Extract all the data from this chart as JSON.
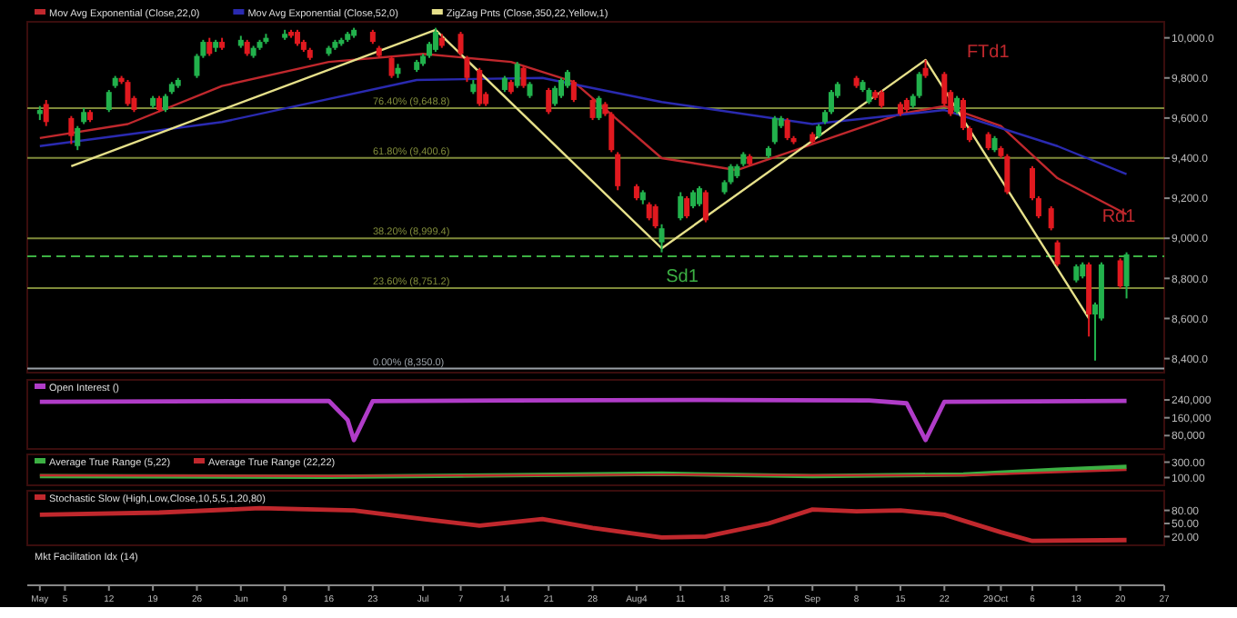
{
  "chart_data": [
    {
      "type": "candlestick",
      "legend": "top left",
      "tick_labels": "y",
      "xlim": [
        "--04-29",
        "--10-27"
      ],
      "ylim": [
        8330,
        10080
      ],
      "yticks": [
        {
          "value": 8400,
          "label": "8,400.0"
        },
        {
          "value": 8600,
          "label": "8,600.0"
        },
        {
          "value": 8800,
          "label": "8,800.0"
        },
        {
          "value": 9000,
          "label": "9,000.0"
        },
        {
          "value": 9200,
          "label": "9,200.0"
        },
        {
          "value": 9400,
          "label": "9,400.0"
        },
        {
          "value": 9600,
          "label": "9,600.0"
        },
        {
          "value": 9800,
          "label": "9,800.0"
        },
        {
          "value": 10000,
          "label": "10,000.0"
        }
      ],
      "x": [
        "--05-01",
        "--05-02",
        "--05-06",
        "--05-07",
        "--05-08",
        "--05-09",
        "--05-12",
        "--05-13",
        "--05-14",
        "--05-15",
        "--05-16",
        "--05-19",
        "--05-20",
        "--05-21",
        "--05-22",
        "--05-23",
        "--05-26",
        "--05-27",
        "--05-28",
        "--05-29",
        "--05-30",
        "--06-02",
        "--06-03",
        "--06-04",
        "--06-05",
        "--06-06",
        "--06-09",
        "--06-10",
        "--06-11",
        "--06-12",
        "--06-13",
        "--06-16",
        "--06-17",
        "--06-18",
        "--06-19",
        "--06-20",
        "--06-23",
        "--06-24",
        "--06-26",
        "--06-27",
        "--06-30",
        "--07-01",
        "--07-02",
        "--07-03",
        "--07-04",
        "--07-07",
        "--07-08",
        "--07-09",
        "--07-10",
        "--07-11",
        "--07-14",
        "--07-15",
        "--07-16",
        "--07-17",
        "--07-18",
        "--07-21",
        "--07-22",
        "--07-23",
        "--07-24",
        "--07-25",
        "--07-28",
        "--07-29",
        "--07-30",
        "--07-31",
        "--08-01",
        "--08-04",
        "--08-05",
        "--08-06",
        "--08-07",
        "--08-08",
        "--08-11",
        "--08-12",
        "--08-13",
        "--08-14",
        "--08-15",
        "--08-18",
        "--08-19",
        "--08-20",
        "--08-21",
        "--08-22",
        "--08-25",
        "--08-26",
        "--08-27",
        "--08-28",
        "--08-29",
        "--09-01",
        "--09-02",
        "--09-03",
        "--09-04",
        "--09-05",
        "--09-08",
        "--09-09",
        "--09-10",
        "--09-11",
        "--09-12",
        "--09-15",
        "--09-16",
        "--09-17",
        "--09-18",
        "--09-19",
        "--09-22",
        "--09-23",
        "--09-24",
        "--09-25",
        "--09-26",
        "--09-29",
        "--09-30",
        "--10-01",
        "--10-02",
        "--10-06",
        "--10-07",
        "--10-09",
        "--10-10",
        "--10-13",
        "--10-14",
        "--10-15",
        "--10-16",
        "--10-17",
        "--10-20",
        "--10-21"
      ],
      "ohlc": [
        [
          9620,
          9660,
          9590,
          9640
        ],
        [
          9670,
          9690,
          9560,
          9580
        ],
        [
          9600,
          9610,
          9470,
          9510
        ],
        [
          9460,
          9560,
          9440,
          9550
        ],
        [
          9580,
          9650,
          9570,
          9630
        ],
        [
          9630,
          9640,
          9580,
          9590
        ],
        [
          9640,
          9740,
          9630,
          9730
        ],
        [
          9760,
          9810,
          9750,
          9800
        ],
        [
          9800,
          9810,
          9770,
          9780
        ],
        [
          9780,
          9790,
          9660,
          9670
        ],
        [
          9700,
          9710,
          9630,
          9640
        ],
        [
          9660,
          9710,
          9650,
          9700
        ],
        [
          9700,
          9710,
          9630,
          9640
        ],
        [
          9640,
          9720,
          9630,
          9710
        ],
        [
          9730,
          9780,
          9720,
          9770
        ],
        [
          9760,
          9800,
          9750,
          9790
        ],
        [
          9810,
          9920,
          9800,
          9910
        ],
        [
          9910,
          9990,
          9900,
          9980
        ],
        [
          9980,
          10000,
          9910,
          9920
        ],
        [
          9950,
          9990,
          9930,
          9980
        ],
        [
          9980,
          10000,
          9940,
          9950
        ],
        [
          9960,
          10010,
          9950,
          9990
        ],
        [
          9980,
          9990,
          9910,
          9920
        ],
        [
          9910,
          9960,
          9900,
          9950
        ],
        [
          9950,
          9990,
          9940,
          9980
        ],
        [
          9980,
          10020,
          9970,
          10000
        ],
        [
          10000,
          10040,
          9990,
          10020
        ],
        [
          10030,
          10040,
          10000,
          10010
        ],
        [
          10030,
          10040,
          9960,
          9970
        ],
        [
          9980,
          9990,
          9930,
          9940
        ],
        [
          9940,
          9950,
          9890,
          9900
        ],
        [
          9920,
          9960,
          9910,
          9950
        ],
        [
          9950,
          9990,
          9940,
          9980
        ],
        [
          9970,
          10000,
          9960,
          9990
        ],
        [
          9990,
          10030,
          9980,
          10020
        ],
        [
          10010,
          10050,
          10000,
          10040
        ],
        [
          10030,
          10040,
          9970,
          9980
        ],
        [
          9950,
          9960,
          9900,
          9910
        ],
        [
          9900,
          9910,
          9800,
          9810
        ],
        [
          9820,
          9870,
          9800,
          9850
        ],
        [
          9840,
          9890,
          9830,
          9880
        ],
        [
          9870,
          9920,
          9860,
          9910
        ],
        [
          9910,
          9980,
          9900,
          9970
        ],
        [
          9940,
          10050,
          9930,
          10030
        ],
        [
          10000,
          10020,
          9950,
          9960
        ],
        [
          10020,
          10030,
          9910,
          9920
        ],
        [
          9900,
          9910,
          9780,
          9800
        ],
        [
          9730,
          9790,
          9720,
          9770
        ],
        [
          9840,
          9850,
          9660,
          9670
        ],
        [
          9720,
          9730,
          9660,
          9670
        ],
        [
          9740,
          9810,
          9730,
          9800
        ],
        [
          9780,
          9790,
          9720,
          9730
        ],
        [
          9760,
          9880,
          9750,
          9870
        ],
        [
          9850,
          9860,
          9750,
          9760
        ],
        [
          9710,
          9780,
          9700,
          9770
        ],
        [
          9740,
          9750,
          9620,
          9630
        ],
        [
          9670,
          9760,
          9660,
          9750
        ],
        [
          9710,
          9800,
          9700,
          9790
        ],
        [
          9760,
          9840,
          9750,
          9830
        ],
        [
          9780,
          9790,
          9680,
          9690
        ],
        [
          9690,
          9700,
          9590,
          9600
        ],
        [
          9600,
          9710,
          9590,
          9700
        ],
        [
          9670,
          9680,
          9610,
          9620
        ],
        [
          9620,
          9630,
          9430,
          9440
        ],
        [
          9420,
          9430,
          9240,
          9260
        ],
        [
          9260,
          9270,
          9190,
          9200
        ],
        [
          9190,
          9240,
          9170,
          9230
        ],
        [
          9170,
          9180,
          9090,
          9100
        ],
        [
          9160,
          9170,
          9050,
          9060
        ],
        [
          8980,
          9070,
          8930,
          9050
        ],
        [
          9100,
          9230,
          9090,
          9210
        ],
        [
          9200,
          9210,
          9100,
          9110
        ],
        [
          9160,
          9240,
          9150,
          9230
        ],
        [
          9170,
          9260,
          9160,
          9250
        ],
        [
          9230,
          9240,
          9080,
          9090
        ],
        [
          9230,
          9290,
          9220,
          9280
        ],
        [
          9280,
          9370,
          9270,
          9360
        ],
        [
          9310,
          9370,
          9300,
          9360
        ],
        [
          9370,
          9430,
          9360,
          9420
        ],
        [
          9410,
          9420,
          9360,
          9370
        ],
        [
          9410,
          9460,
          9400,
          9450
        ],
        [
          9480,
          9610,
          9470,
          9600
        ],
        [
          9560,
          9610,
          9550,
          9600
        ],
        [
          9590,
          9600,
          9490,
          9500
        ],
        [
          9500,
          9510,
          9470,
          9480
        ],
        [
          9520,
          9530,
          9470,
          9480
        ],
        [
          9510,
          9570,
          9500,
          9560
        ],
        [
          9580,
          9640,
          9570,
          9630
        ],
        [
          9630,
          9740,
          9620,
          9730
        ],
        [
          9710,
          9780,
          9700,
          9770
        ],
        [
          9800,
          9810,
          9750,
          9760
        ],
        [
          9740,
          9790,
          9730,
          9780
        ],
        [
          9680,
          9750,
          9670,
          9740
        ],
        [
          9730,
          9740,
          9690,
          9700
        ],
        [
          9730,
          9740,
          9650,
          9660
        ],
        [
          9670,
          9680,
          9610,
          9620
        ],
        [
          9690,
          9700,
          9630,
          9640
        ],
        [
          9660,
          9720,
          9650,
          9710
        ],
        [
          9710,
          9830,
          9700,
          9820
        ],
        [
          9850,
          9890,
          9800,
          9810
        ],
        [
          9820,
          9830,
          9660,
          9670
        ],
        [
          9730,
          9740,
          9610,
          9620
        ],
        [
          9630,
          9710,
          9620,
          9700
        ],
        [
          9690,
          9700,
          9540,
          9550
        ],
        [
          9550,
          9560,
          9480,
          9490
        ],
        [
          9520,
          9530,
          9440,
          9450
        ],
        [
          9440,
          9510,
          9430,
          9500
        ],
        [
          9450,
          9460,
          9400,
          9410
        ],
        [
          9410,
          9420,
          9220,
          9230
        ],
        [
          9350,
          9360,
          9190,
          9200
        ],
        [
          9200,
          9210,
          9100,
          9110
        ],
        [
          9150,
          9160,
          9040,
          9050
        ],
        [
          8980,
          8990,
          8860,
          8870
        ],
        [
          8790,
          8870,
          8780,
          8860
        ],
        [
          8810,
          8880,
          8800,
          8870
        ],
        [
          8870,
          8880,
          8510,
          8620
        ],
        [
          8620,
          8680,
          8390,
          8670
        ],
        [
          8600,
          8880,
          8590,
          8870
        ],
        [
          8890,
          8900,
          8750,
          8760
        ],
        [
          8760,
          8930,
          8700,
          8920
        ]
      ],
      "colors": [
        "#22b14c",
        "#e0191f",
        "#e0191f",
        "#22b14c",
        "#22b14c",
        "#e0191f",
        "#22b14c",
        "#22b14c",
        "#e0191f",
        "#e0191f",
        "#e0191f",
        "#22b14c",
        "#e0191f",
        "#22b14c",
        "#22b14c",
        "#22b14c",
        "#22b14c",
        "#22b14c",
        "#e0191f",
        "#22b14c",
        "#e0191f",
        "#22b14c",
        "#e0191f",
        "#22b14c",
        "#22b14c",
        "#22b14c",
        "#22b14c",
        "#e0191f",
        "#e0191f",
        "#e0191f",
        "#e0191f",
        "#22b14c",
        "#22b14c",
        "#22b14c",
        "#22b14c",
        "#22b14c",
        "#e0191f",
        "#e0191f",
        "#e0191f",
        "#22b14c",
        "#22b14c",
        "#22b14c",
        "#22b14c",
        "#22b14c",
        "#e0191f",
        "#e0191f",
        "#e0191f",
        "#22b14c",
        "#e0191f",
        "#e0191f",
        "#22b14c",
        "#e0191f",
        "#22b14c",
        "#e0191f",
        "#22b14c",
        "#e0191f",
        "#22b14c",
        "#22b14c",
        "#22b14c",
        "#e0191f",
        "#e0191f",
        "#22b14c",
        "#e0191f",
        "#e0191f",
        "#e0191f",
        "#e0191f",
        "#22b14c",
        "#e0191f",
        "#e0191f",
        "#22b14c",
        "#22b14c",
        "#e0191f",
        "#22b14c",
        "#22b14c",
        "#e0191f",
        "#22b14c",
        "#22b14c",
        "#22b14c",
        "#22b14c",
        "#e0191f",
        "#22b14c",
        "#22b14c",
        "#22b14c",
        "#e0191f",
        "#e0191f",
        "#e0191f",
        "#22b14c",
        "#22b14c",
        "#22b14c",
        "#22b14c",
        "#e0191f",
        "#22b14c",
        "#22b14c",
        "#e0191f",
        "#e0191f",
        "#e0191f",
        "#e0191f",
        "#22b14c",
        "#22b14c",
        "#e0191f",
        "#e0191f",
        "#e0191f",
        "#22b14c",
        "#e0191f",
        "#e0191f",
        "#e0191f",
        "#22b14c",
        "#e0191f",
        "#e0191f",
        "#e0191f",
        "#e0191f",
        "#e0191f",
        "#e0191f",
        "#22b14c",
        "#22b14c",
        "#e0191f",
        "#22b14c",
        "#22b14c",
        "#e0191f",
        "#22b14c"
      ],
      "series": [
        {
          "type": "line",
          "name": "Mov Avg Exponential (Close,22,0)",
          "color": "#c0282d",
          "x": [
            "--05-01",
            "--05-15",
            "--05-30",
            "--06-16",
            "--07-01",
            "--07-15",
            "--07-25",
            "--08-08",
            "--08-20",
            "--09-01",
            "--09-15",
            "--09-22",
            "--10-01",
            "--10-10",
            "--10-21"
          ],
          "values": [
            9500,
            9570,
            9760,
            9880,
            9920,
            9880,
            9780,
            9400,
            9340,
            9470,
            9620,
            9660,
            9560,
            9300,
            9120
          ]
        },
        {
          "type": "line",
          "name": "Mov Avg Exponential (Close,52,0)",
          "color": "#2a2ab0",
          "x": [
            "--05-01",
            "--05-30",
            "--06-30",
            "--07-20",
            "--08-08",
            "--09-01",
            "--09-22",
            "--10-10",
            "--10-21"
          ],
          "values": [
            9460,
            9580,
            9790,
            9800,
            9680,
            9570,
            9640,
            9460,
            9320
          ]
        },
        {
          "type": "line",
          "name": "ZigZag Pnts (Close,350,22,Yellow,1)",
          "color": "#e6e08a",
          "x": [
            "--05-06",
            "--07-03",
            "--08-08",
            "--09-19",
            "--10-15"
          ],
          "values": [
            9360,
            10040,
            8950,
            9890,
            8600
          ]
        }
      ],
      "ref_lines": [
        {
          "axis": "y",
          "value": 9648.8,
          "label": "76.40% (9,648.8)",
          "color": "#7f8a3a"
        },
        {
          "axis": "y",
          "value": 9400.6,
          "label": "61.80% (9,400.6)",
          "color": "#7f8a3a"
        },
        {
          "axis": "y",
          "value": 8999.4,
          "label": "38.20% (8,999.4)",
          "color": "#7f8a3a"
        },
        {
          "axis": "y",
          "value": 8751.2,
          "label": "23.60% (8,751.2)",
          "color": "#7f8a3a"
        },
        {
          "axis": "y",
          "value": 8350,
          "label": "0.00% (8,350.0)",
          "color": "#9aa0a6"
        },
        {
          "axis": "y",
          "value": 8910,
          "color": "#3cb043",
          "line_style": "dashed"
        }
      ],
      "annotations": [
        "Sd1",
        "FTd1",
        "Rd1"
      ]
    },
    {
      "type": "line",
      "legend": "top left",
      "tick_labels": "y",
      "xlim": [
        "--04-29",
        "--10-27"
      ],
      "ylim": [
        20000,
        330000
      ],
      "yticks": [
        {
          "value": 80000,
          "label": "80,000"
        },
        {
          "value": 160000,
          "label": "160,000"
        },
        {
          "value": 240000,
          "label": "240,000"
        }
      ],
      "series": [
        {
          "name": "Open Interest ()",
          "color": "#b03cc8",
          "x": [
            "--05-01",
            "--06-16",
            "--06-19",
            "--06-20",
            "--06-23",
            "--07-15",
            "--08-15",
            "--09-10",
            "--09-16",
            "--09-19",
            "--09-22",
            "--10-21"
          ],
          "values": [
            232000,
            236000,
            150000,
            60000,
            235000,
            238000,
            240000,
            238000,
            225000,
            60000,
            232000,
            236000
          ]
        }
      ]
    },
    {
      "type": "line",
      "legend": "top left",
      "tick_labels": "y",
      "xlim": [
        "--04-29",
        "--10-27"
      ],
      "ylim": [
        0,
        400
      ],
      "yticks": [
        {
          "value": 100,
          "label": "100.00"
        },
        {
          "value": 300,
          "label": "300.00"
        }
      ],
      "series": [
        {
          "name": "Average True Range (5,22)",
          "color": "#3cb043",
          "x": [
            "--05-01",
            "--06-16",
            "--07-15",
            "--08-08",
            "--09-01",
            "--09-25",
            "--10-10",
            "--10-21"
          ],
          "values": [
            120,
            110,
            130,
            150,
            120,
            140,
            200,
            240
          ]
        },
        {
          "name": "Average True Range (22,22)",
          "color": "#c0282d",
          "x": [
            "--05-01",
            "--06-16",
            "--07-15",
            "--08-08",
            "--09-01",
            "--09-25",
            "--10-10",
            "--10-21"
          ],
          "values": [
            130,
            120,
            130,
            140,
            130,
            130,
            170,
            200
          ]
        }
      ]
    },
    {
      "type": "line",
      "legend": "top left",
      "xlim": [
        "--04-29",
        "--10-27"
      ],
      "ylim": [
        0,
        125
      ],
      "xticks": [
        {
          "value": "--05-01",
          "label": "May"
        },
        {
          "value": "--05-05",
          "label": "5"
        },
        {
          "value": "--05-12",
          "label": "12"
        },
        {
          "value": "--05-19",
          "label": "19"
        },
        {
          "value": "--05-26",
          "label": "26"
        },
        {
          "value": "--06-02",
          "label": "Jun"
        },
        {
          "value": "--06-09",
          "label": "9"
        },
        {
          "value": "--06-16",
          "label": "16"
        },
        {
          "value": "--06-23",
          "label": "23"
        },
        {
          "value": "--07-01",
          "label": "Jul"
        },
        {
          "value": "--07-07",
          "label": "7"
        },
        {
          "value": "--07-14",
          "label": "14"
        },
        {
          "value": "--07-21",
          "label": "21"
        },
        {
          "value": "--07-28",
          "label": "28"
        },
        {
          "value": "--08-04",
          "label": "Aug4"
        },
        {
          "value": "--08-11",
          "label": "11"
        },
        {
          "value": "--08-18",
          "label": "18"
        },
        {
          "value": "--08-25",
          "label": "25"
        },
        {
          "value": "--09-01",
          "label": "Sep"
        },
        {
          "value": "--09-08",
          "label": "8"
        },
        {
          "value": "--09-15",
          "label": "15"
        },
        {
          "value": "--09-22",
          "label": "22"
        },
        {
          "value": "--09-29",
          "label": "29"
        },
        {
          "value": "--10-01",
          "label": "Oct"
        },
        {
          "value": "--10-06",
          "label": "6"
        },
        {
          "value": "--10-13",
          "label": "13"
        },
        {
          "value": "--10-20",
          "label": "20"
        },
        {
          "value": "--10-27",
          "label": "27"
        }
      ],
      "yticks": [
        {
          "value": 20,
          "label": "20.00"
        },
        {
          "value": 50,
          "label": "50.00"
        },
        {
          "value": 80,
          "label": "80.00"
        }
      ],
      "series": [
        {
          "name": "Stochastic Slow (High,Low,Close,10,5,5,1,20,80)",
          "color": "#c0282d",
          "x": [
            "--05-01",
            "--05-20",
            "--06-05",
            "--06-20",
            "--07-01",
            "--07-10",
            "--07-20",
            "--07-28",
            "--08-08",
            "--08-15",
            "--08-25",
            "--09-01",
            "--09-08",
            "--09-15",
            "--09-22",
            "--10-01",
            "--10-06",
            "--10-21"
          ],
          "values": [
            70,
            75,
            85,
            80,
            60,
            45,
            60,
            40,
            18,
            20,
            50,
            82,
            78,
            80,
            70,
            30,
            10,
            12
          ]
        }
      ],
      "annotations": [
        "Mkt Facilitation Idx (14)"
      ]
    }
  ]
}
